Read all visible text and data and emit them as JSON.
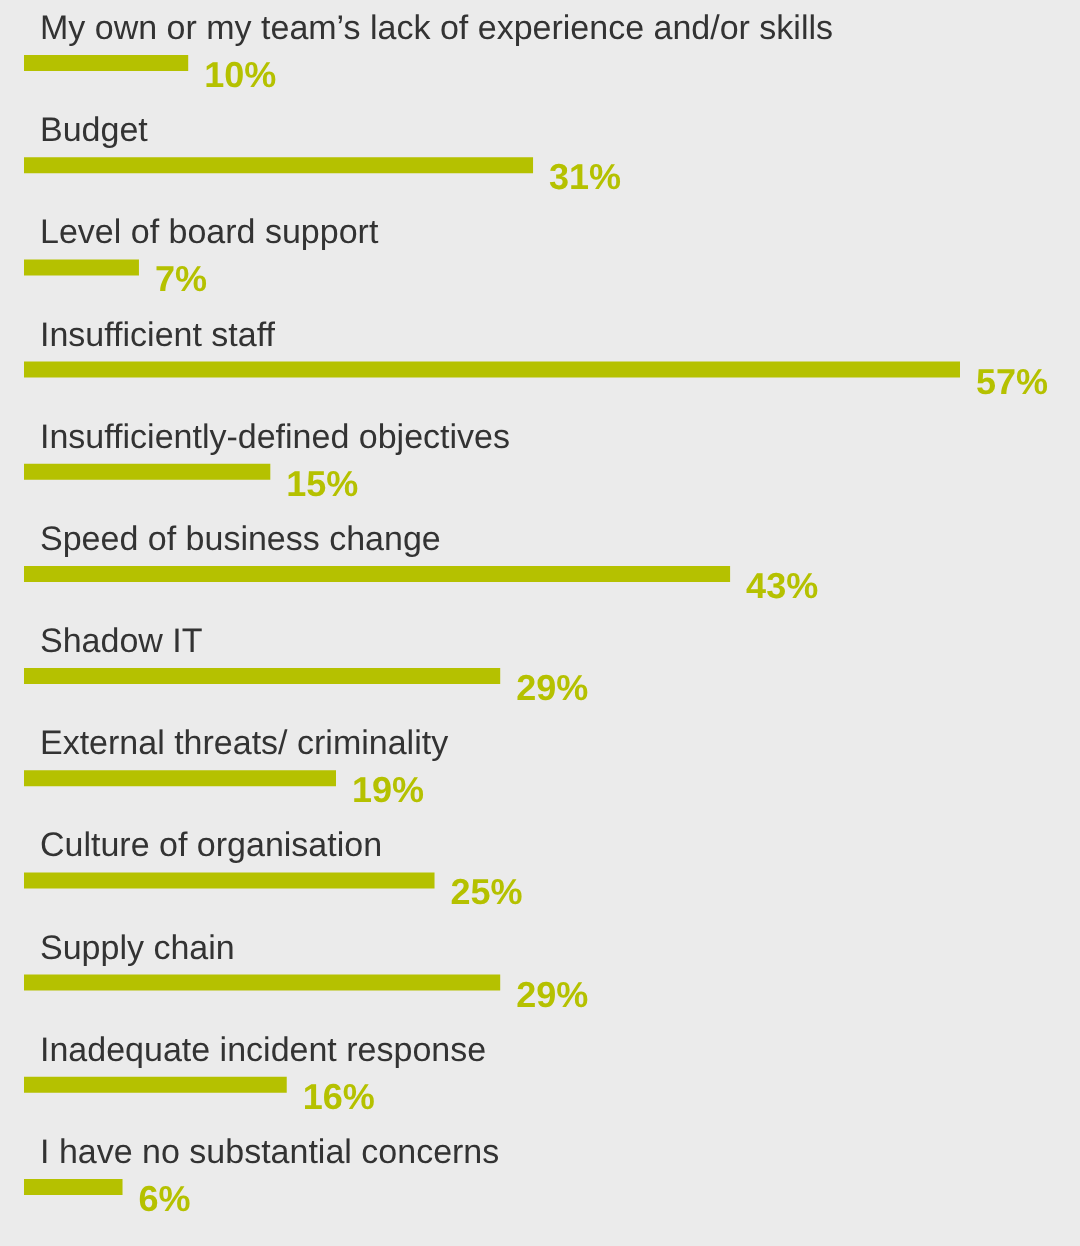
{
  "chart_data": {
    "type": "bar",
    "orientation": "horizontal",
    "color": "#b5c100",
    "categories": [
      "My own or my team’s lack of experience and/or skills",
      "Budget",
      "Level of board support",
      "Insufficient staff",
      "Insufficiently-defined objectives",
      "Speed of business change",
      "Shadow IT",
      "External threats/ criminality",
      "Culture of organisation",
      "Supply chain",
      "Inadequate incident response",
      "I have no substantial concerns"
    ],
    "values": [
      10,
      31,
      7,
      57,
      15,
      43,
      29,
      19,
      25,
      29,
      16,
      6
    ],
    "value_labels": [
      "10%",
      "31%",
      "7%",
      "57%",
      "15%",
      "43%",
      "29%",
      "19%",
      "25%",
      "29%",
      "16%",
      "6%"
    ]
  }
}
